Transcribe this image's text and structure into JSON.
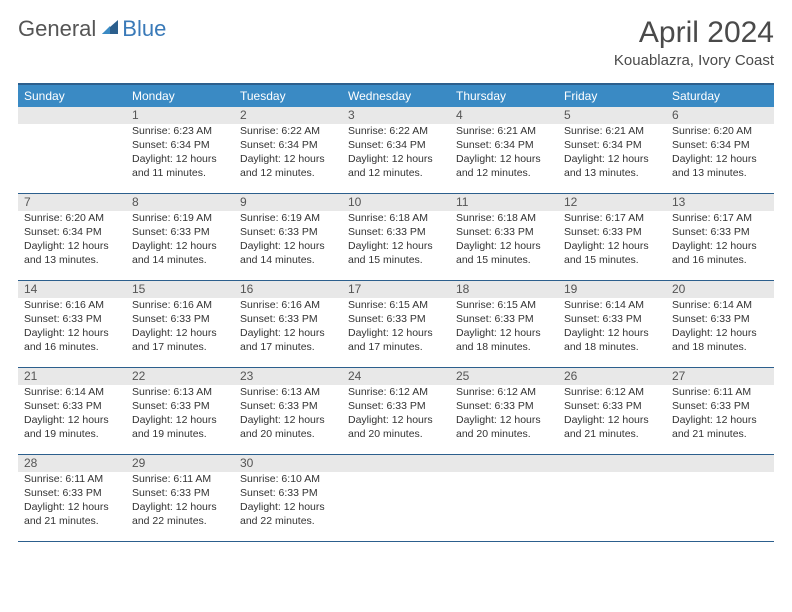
{
  "logo": {
    "text1": "General",
    "text2": "Blue"
  },
  "title": "April 2024",
  "subtitle": "Kouablazra, Ivory Coast",
  "dayHeaders": [
    "Sunday",
    "Monday",
    "Tuesday",
    "Wednesday",
    "Thursday",
    "Friday",
    "Saturday"
  ],
  "style": {
    "header_bg": "#3a8ac4",
    "border_color": "#2c5f8d",
    "daynum_bg": "#e8e8e8",
    "title_color": "#4a4a4a",
    "body_font_size": 10.5,
    "header_font_size": 12
  },
  "weeks": [
    [
      {
        "day": null
      },
      {
        "day": 1,
        "sunrise": "Sunrise: 6:23 AM",
        "sunset": "Sunset: 6:34 PM",
        "daylight": "Daylight: 12 hours and 11 minutes."
      },
      {
        "day": 2,
        "sunrise": "Sunrise: 6:22 AM",
        "sunset": "Sunset: 6:34 PM",
        "daylight": "Daylight: 12 hours and 12 minutes."
      },
      {
        "day": 3,
        "sunrise": "Sunrise: 6:22 AM",
        "sunset": "Sunset: 6:34 PM",
        "daylight": "Daylight: 12 hours and 12 minutes."
      },
      {
        "day": 4,
        "sunrise": "Sunrise: 6:21 AM",
        "sunset": "Sunset: 6:34 PM",
        "daylight": "Daylight: 12 hours and 12 minutes."
      },
      {
        "day": 5,
        "sunrise": "Sunrise: 6:21 AM",
        "sunset": "Sunset: 6:34 PM",
        "daylight": "Daylight: 12 hours and 13 minutes."
      },
      {
        "day": 6,
        "sunrise": "Sunrise: 6:20 AM",
        "sunset": "Sunset: 6:34 PM",
        "daylight": "Daylight: 12 hours and 13 minutes."
      }
    ],
    [
      {
        "day": 7,
        "sunrise": "Sunrise: 6:20 AM",
        "sunset": "Sunset: 6:34 PM",
        "daylight": "Daylight: 12 hours and 13 minutes."
      },
      {
        "day": 8,
        "sunrise": "Sunrise: 6:19 AM",
        "sunset": "Sunset: 6:33 PM",
        "daylight": "Daylight: 12 hours and 14 minutes."
      },
      {
        "day": 9,
        "sunrise": "Sunrise: 6:19 AM",
        "sunset": "Sunset: 6:33 PM",
        "daylight": "Daylight: 12 hours and 14 minutes."
      },
      {
        "day": 10,
        "sunrise": "Sunrise: 6:18 AM",
        "sunset": "Sunset: 6:33 PM",
        "daylight": "Daylight: 12 hours and 15 minutes."
      },
      {
        "day": 11,
        "sunrise": "Sunrise: 6:18 AM",
        "sunset": "Sunset: 6:33 PM",
        "daylight": "Daylight: 12 hours and 15 minutes."
      },
      {
        "day": 12,
        "sunrise": "Sunrise: 6:17 AM",
        "sunset": "Sunset: 6:33 PM",
        "daylight": "Daylight: 12 hours and 15 minutes."
      },
      {
        "day": 13,
        "sunrise": "Sunrise: 6:17 AM",
        "sunset": "Sunset: 6:33 PM",
        "daylight": "Daylight: 12 hours and 16 minutes."
      }
    ],
    [
      {
        "day": 14,
        "sunrise": "Sunrise: 6:16 AM",
        "sunset": "Sunset: 6:33 PM",
        "daylight": "Daylight: 12 hours and 16 minutes."
      },
      {
        "day": 15,
        "sunrise": "Sunrise: 6:16 AM",
        "sunset": "Sunset: 6:33 PM",
        "daylight": "Daylight: 12 hours and 17 minutes."
      },
      {
        "day": 16,
        "sunrise": "Sunrise: 6:16 AM",
        "sunset": "Sunset: 6:33 PM",
        "daylight": "Daylight: 12 hours and 17 minutes."
      },
      {
        "day": 17,
        "sunrise": "Sunrise: 6:15 AM",
        "sunset": "Sunset: 6:33 PM",
        "daylight": "Daylight: 12 hours and 17 minutes."
      },
      {
        "day": 18,
        "sunrise": "Sunrise: 6:15 AM",
        "sunset": "Sunset: 6:33 PM",
        "daylight": "Daylight: 12 hours and 18 minutes."
      },
      {
        "day": 19,
        "sunrise": "Sunrise: 6:14 AM",
        "sunset": "Sunset: 6:33 PM",
        "daylight": "Daylight: 12 hours and 18 minutes."
      },
      {
        "day": 20,
        "sunrise": "Sunrise: 6:14 AM",
        "sunset": "Sunset: 6:33 PM",
        "daylight": "Daylight: 12 hours and 18 minutes."
      }
    ],
    [
      {
        "day": 21,
        "sunrise": "Sunrise: 6:14 AM",
        "sunset": "Sunset: 6:33 PM",
        "daylight": "Daylight: 12 hours and 19 minutes."
      },
      {
        "day": 22,
        "sunrise": "Sunrise: 6:13 AM",
        "sunset": "Sunset: 6:33 PM",
        "daylight": "Daylight: 12 hours and 19 minutes."
      },
      {
        "day": 23,
        "sunrise": "Sunrise: 6:13 AM",
        "sunset": "Sunset: 6:33 PM",
        "daylight": "Daylight: 12 hours and 20 minutes."
      },
      {
        "day": 24,
        "sunrise": "Sunrise: 6:12 AM",
        "sunset": "Sunset: 6:33 PM",
        "daylight": "Daylight: 12 hours and 20 minutes."
      },
      {
        "day": 25,
        "sunrise": "Sunrise: 6:12 AM",
        "sunset": "Sunset: 6:33 PM",
        "daylight": "Daylight: 12 hours and 20 minutes."
      },
      {
        "day": 26,
        "sunrise": "Sunrise: 6:12 AM",
        "sunset": "Sunset: 6:33 PM",
        "daylight": "Daylight: 12 hours and 21 minutes."
      },
      {
        "day": 27,
        "sunrise": "Sunrise: 6:11 AM",
        "sunset": "Sunset: 6:33 PM",
        "daylight": "Daylight: 12 hours and 21 minutes."
      }
    ],
    [
      {
        "day": 28,
        "sunrise": "Sunrise: 6:11 AM",
        "sunset": "Sunset: 6:33 PM",
        "daylight": "Daylight: 12 hours and 21 minutes."
      },
      {
        "day": 29,
        "sunrise": "Sunrise: 6:11 AM",
        "sunset": "Sunset: 6:33 PM",
        "daylight": "Daylight: 12 hours and 22 minutes."
      },
      {
        "day": 30,
        "sunrise": "Sunrise: 6:10 AM",
        "sunset": "Sunset: 6:33 PM",
        "daylight": "Daylight: 12 hours and 22 minutes."
      },
      {
        "day": null
      },
      {
        "day": null
      },
      {
        "day": null
      },
      {
        "day": null
      }
    ]
  ]
}
